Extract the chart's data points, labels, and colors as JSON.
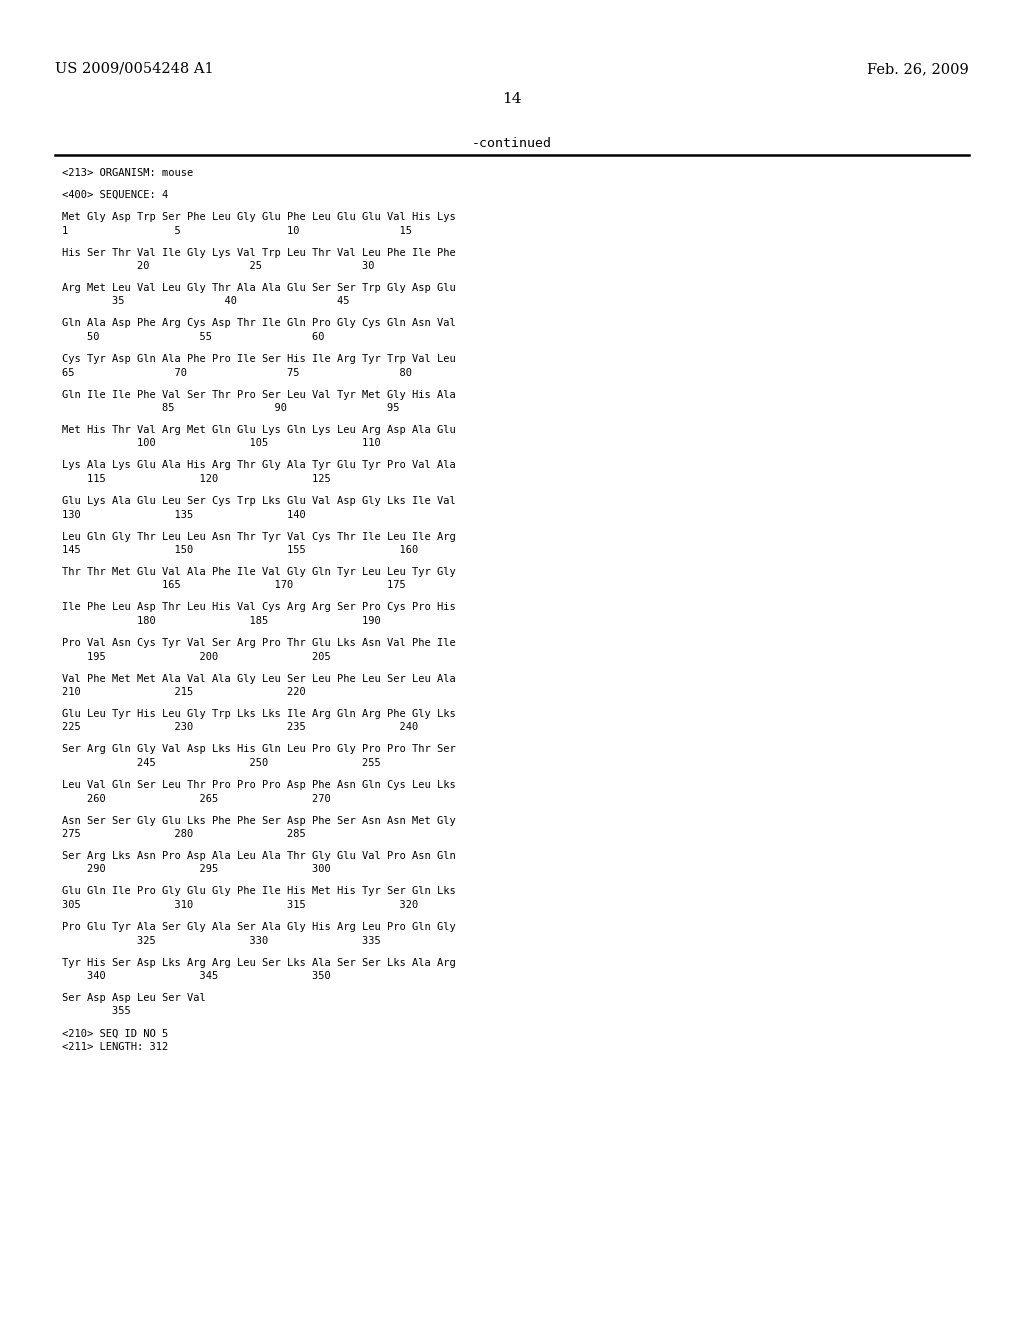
{
  "header_left": "US 2009/0054248 A1",
  "header_right": "Feb. 26, 2009",
  "page_number": "14",
  "continued_label": "-continued",
  "background_color": "#ffffff",
  "text_color": "#000000",
  "content_lines": [
    "<213> ORGANISM: mouse",
    "",
    "<400> SEQUENCE: 4",
    "",
    "Met Gly Asp Trp Ser Phe Leu Gly Glu Phe Leu Glu Glu Val His Lys",
    "1                 5                 10                15",
    "",
    "His Ser Thr Val Ile Gly Lys Val Trp Leu Thr Val Leu Phe Ile Phe",
    "            20                25                30",
    "",
    "Arg Met Leu Val Leu Gly Thr Ala Ala Glu Ser Ser Trp Gly Asp Glu",
    "        35                40                45",
    "",
    "Gln Ala Asp Phe Arg Cys Asp Thr Ile Gln Pro Gly Cys Gln Asn Val",
    "    50                55                60",
    "",
    "Cys Tyr Asp Gln Ala Phe Pro Ile Ser His Ile Arg Tyr Trp Val Leu",
    "65                70                75                80",
    "",
    "Gln Ile Ile Phe Val Ser Thr Pro Ser Leu Val Tyr Met Gly His Ala",
    "                85                90                95",
    "",
    "Met His Thr Val Arg Met Gln Glu Lks Gln Lys Leu Arg Asp Ala Glu",
    "            100               105               110",
    "",
    "Lys Ala Lys Glu Ala His Arg Thr Gly Ala Tyr Glu Tyr Pro Val Ala",
    "    115               120               125",
    "",
    "Glu Lys Ala Glu Leu Ser Cys Trp Lks Glu Val Asp Gly Lys Ile Val",
    "130               135               140",
    "",
    "Leu Gln Gly Thr Leu Leu Asn Thr Tyr Val Cys Thr Ile Leu Ile Arg",
    "145               150               155               160",
    "",
    "Thr Thr Met Glu Val Ala Phe Ile Val Gly Gln Tyr Leu Leu Tyr Gly",
    "                165               170               175",
    "",
    "Ile Phe Leu Asp Thr Leu His Val Cys Arg Arg Ser Pro Cys Pro His",
    "            180               185               190",
    "",
    "Pro Val Asn Cys Tyr Val Ser Arg Pro Thr Glu Lks Asn Val Phe Ile",
    "    195               200               205",
    "",
    "Val Phe Met Met Ala Val Ala Gly Leu Ser Leu Phe Leu Ser Leu Ala",
    "210               215               220",
    "",
    "Glu Leu Tyr His Leu Gly Trp Lks Lks Ile Arg Gln Arg Phe Gly Lys",
    "225               230               235               240",
    "",
    "Ser Arg Gln Gly Val Asp Lks His Gln Leu Pro Gly Pro Pro Thr Ser",
    "            245               250               255",
    "",
    "Leu Val Gln Ser Leu Thr Pro Pro Pro Asp Phe Asn Gln Cys Leu Lks",
    "    260               265               270",
    "",
    "Asn Ser Ser Gly Glu Lks Phe Phe Ser Asp Phe Ser Asn Asn Met Gly",
    "275               280               285",
    "",
    "Ser Arg Lks Asn Pro Asp Ala Leu Ala Thr Gly Glu Val Pro Asn Gln",
    "    290               295               300",
    "",
    "Glu Gln Ile Pro Gly Glu Gly Phe Ile His Met His Tyr Ser Gln Lks",
    "305               310               315               320",
    "",
    "Pro Glu Tyr Ala Ser Gly Ala Ser Ala Gly His Arg Leu Pro Gln Gly",
    "            325               330               335",
    "",
    "Tyr His Ser Asp Lks Arg Arg Leu Ser Lks Ala Ser Ser Lks Ala Arg",
    "    340               345               350",
    "",
    "Ser Asp Asp Leu Ser Val",
    "        355",
    "",
    "<210> SEQ ID NO 5",
    "<211> LENGTH: 312"
  ]
}
